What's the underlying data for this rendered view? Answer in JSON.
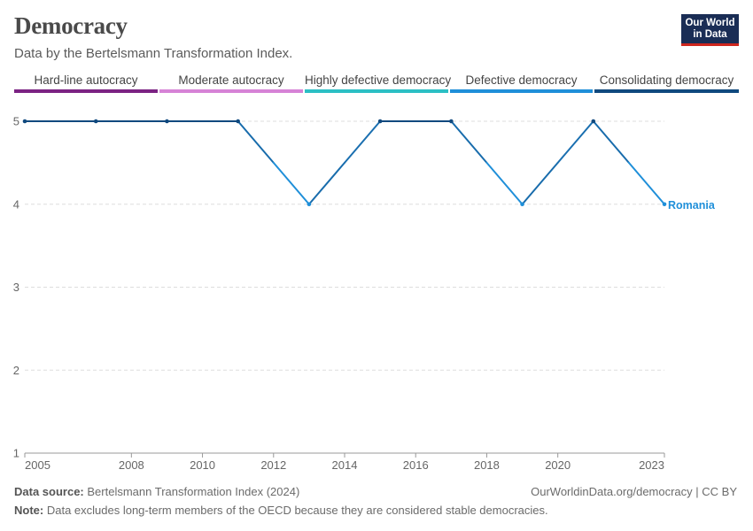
{
  "header": {
    "title": "Democracy",
    "subtitle": "Data by the Bertelsmann Transformation Index.",
    "logo_line1": "Our World",
    "logo_line2": "in Data"
  },
  "legend": [
    {
      "label": "Hard-line autocracy",
      "color": "#7b2283"
    },
    {
      "label": "Moderate autocracy",
      "color": "#d683d6"
    },
    {
      "label": "Highly defective democracy",
      "color": "#2bbfc4"
    },
    {
      "label": "Defective democracy",
      "color": "#1f8fd9"
    },
    {
      "label": "Consolidating democracy",
      "color": "#10497e"
    }
  ],
  "chart_data": {
    "type": "line",
    "title": "Democracy",
    "subtitle": "Data by the Bertelsmann Transformation Index.",
    "x_ticks": [
      2005,
      2008,
      2010,
      2012,
      2014,
      2016,
      2018,
      2020,
      2023
    ],
    "y_ticks": [
      1,
      2,
      3,
      4,
      5
    ],
    "xlim": [
      2005,
      2023
    ],
    "ylim": [
      1,
      5
    ],
    "grid": "horizontal-dashed",
    "series": [
      {
        "name": "Romania",
        "x": [
          2005,
          2007,
          2009,
          2011,
          2013,
          2015,
          2017,
          2019,
          2021,
          2023
        ],
        "y": [
          5,
          5,
          5,
          5,
          4,
          5,
          5,
          4,
          5,
          4
        ]
      }
    ]
  },
  "footer": {
    "source_label": "Data source:",
    "source_text": "Bertelsmann Transformation Index (2024)",
    "url_text": "OurWorldinData.org/democracy | CC BY",
    "note_label": "Note:",
    "note_text": "Data excludes long-term members of the OECD because they are considered stable democracies."
  }
}
